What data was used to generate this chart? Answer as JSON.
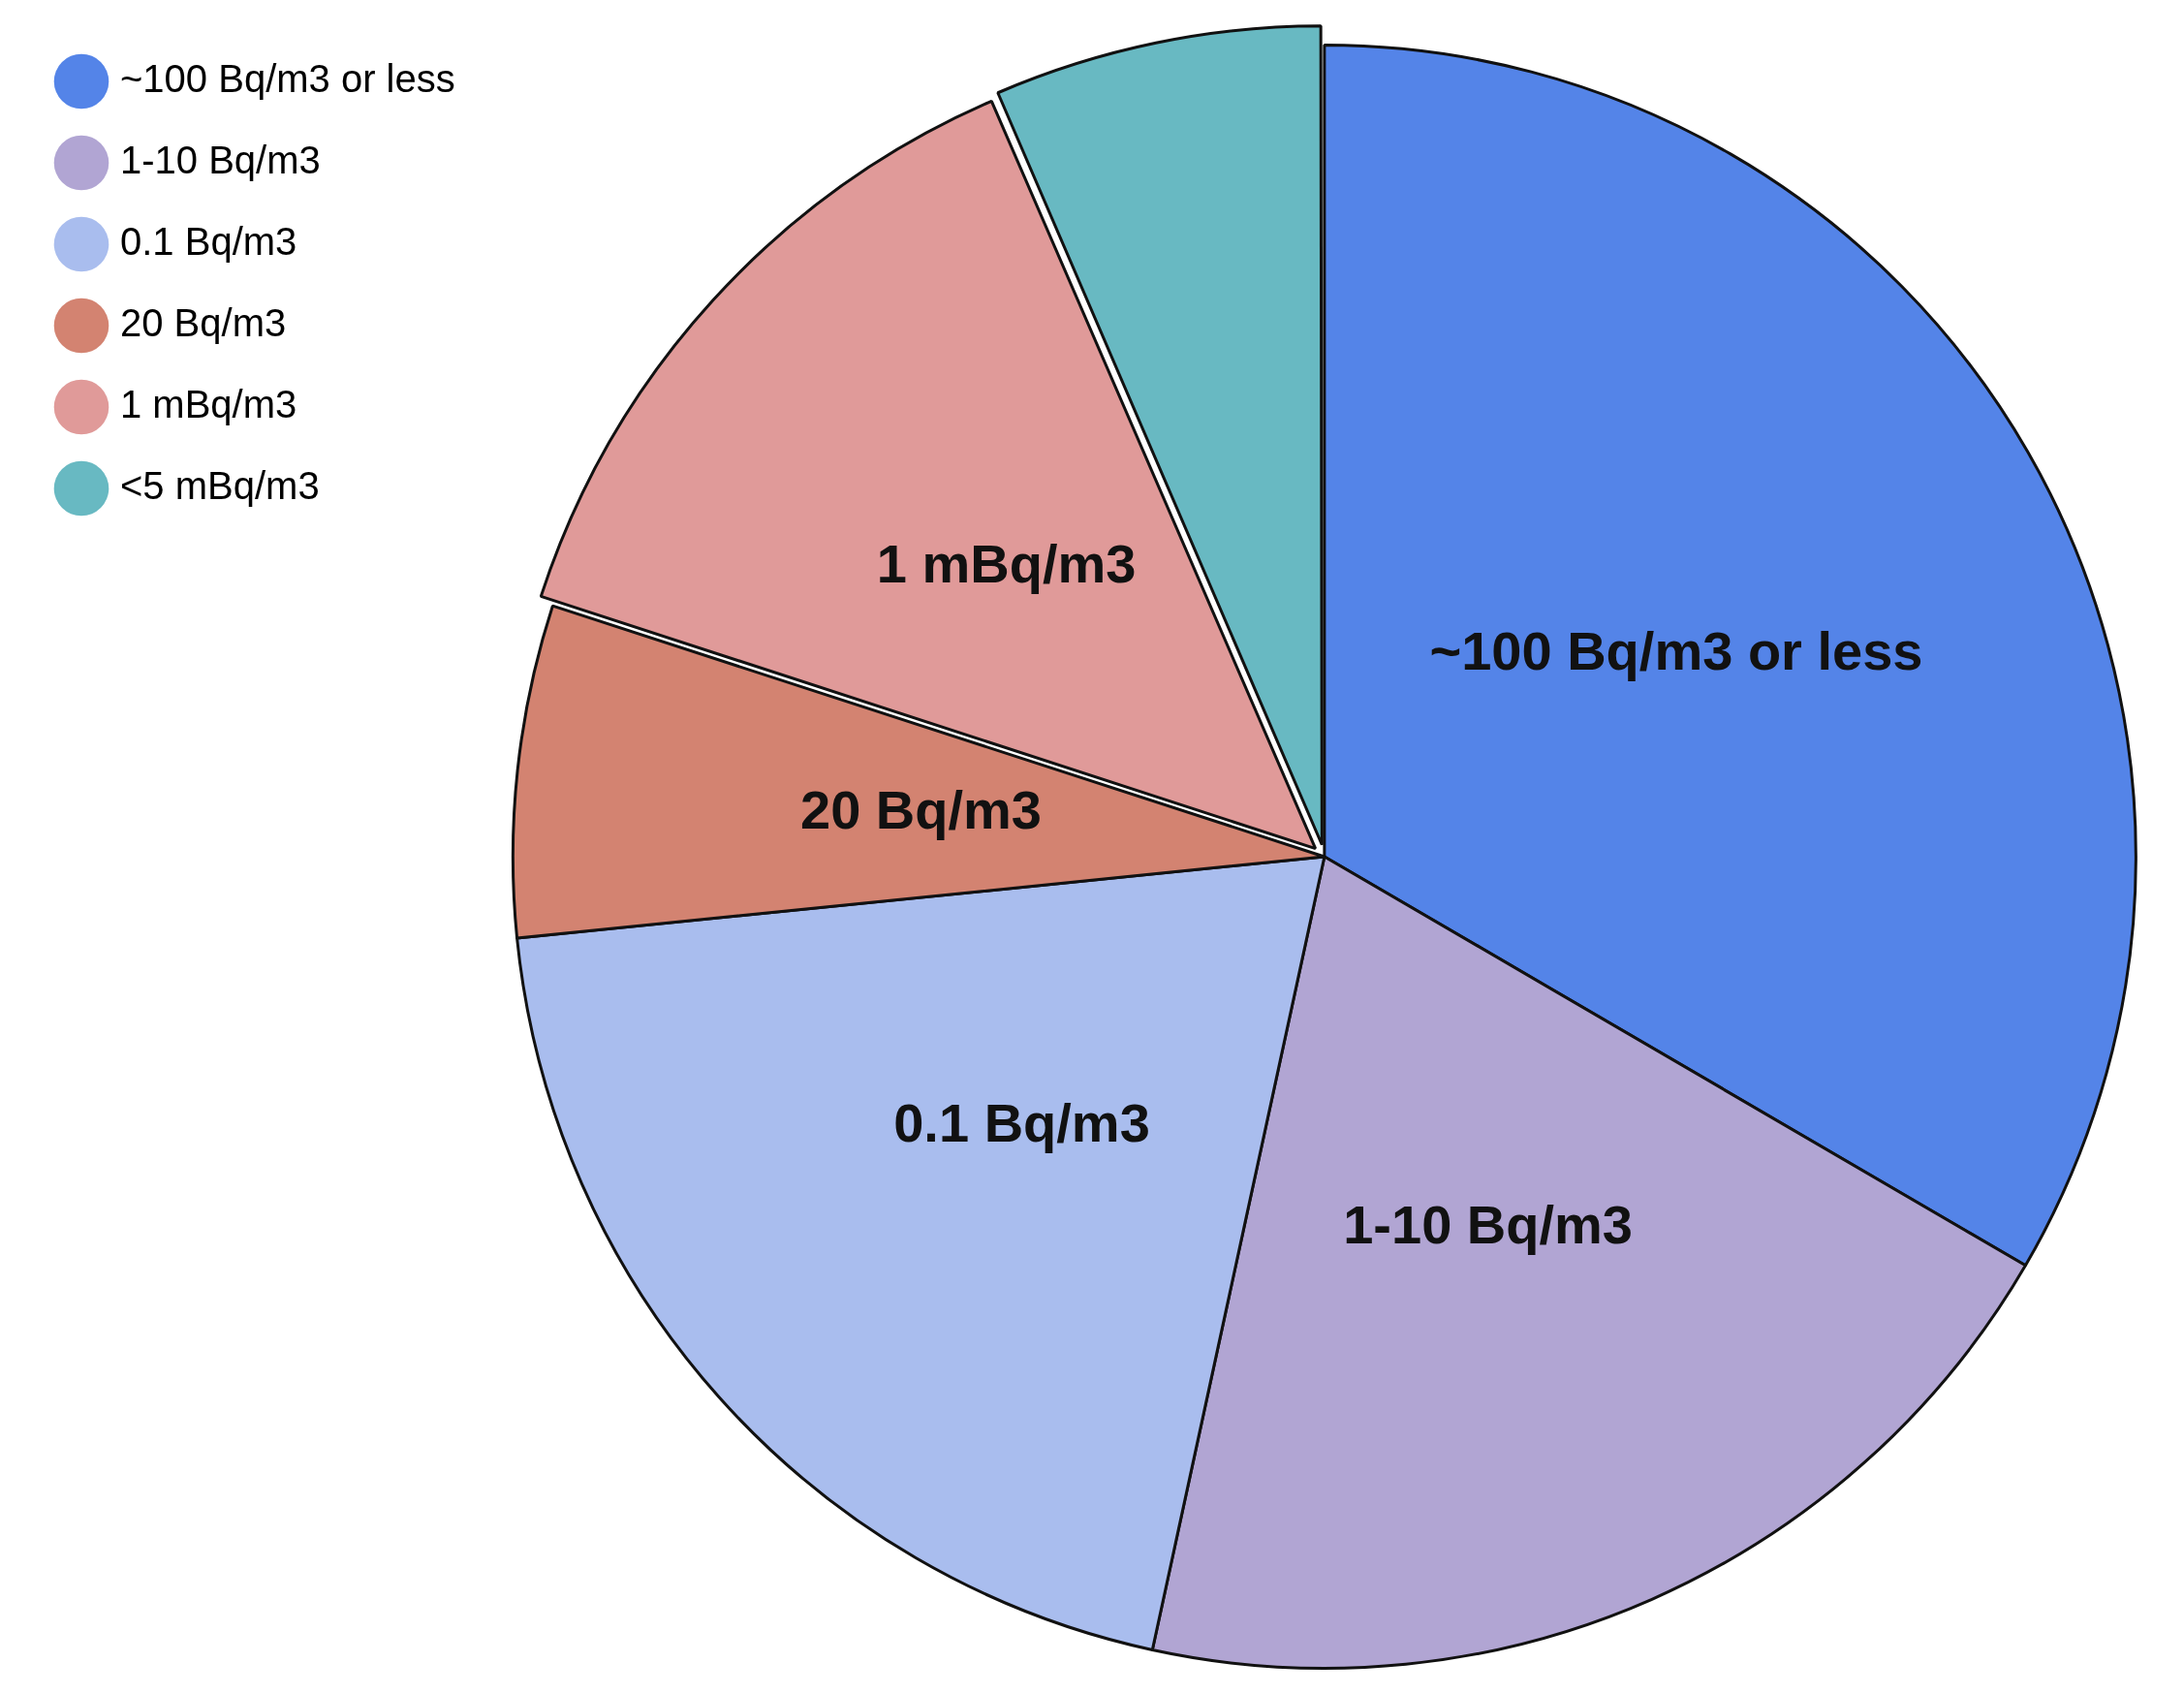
{
  "chart_data": {
    "type": "pie",
    "categories": [
      "~100 Bq/m3 or less",
      "1-10 Bq/m3",
      "0.1 Bq/m3",
      "20 Bq/m3",
      "1 mBq/m3",
      "<5 mBq/m3"
    ],
    "values": [
      33.4,
      20,
      20,
      6.6,
      13.5,
      6.5
    ],
    "colors": [
      "#5484e8",
      "#b1a5d3",
      "#a9bdee",
      "#d38371",
      "#e09a99",
      "#68b9c2"
    ],
    "legend": "top left",
    "annotations": [
      {
        "text": "~100 Bq/m3 or less",
        "x": "~100 Bq/m3 or less"
      },
      {
        "text": "1-10 Bq/m3",
        "x": "1-10 Bq/m3"
      },
      {
        "text": "0.1 Bq/m3",
        "x": "0.1 Bq/m3"
      },
      {
        "text": "20 Bq/m3",
        "x": "20 Bq/m3"
      },
      {
        "text": "1 mBq/m3",
        "x": "1 mBq/m3"
      }
    ]
  }
}
